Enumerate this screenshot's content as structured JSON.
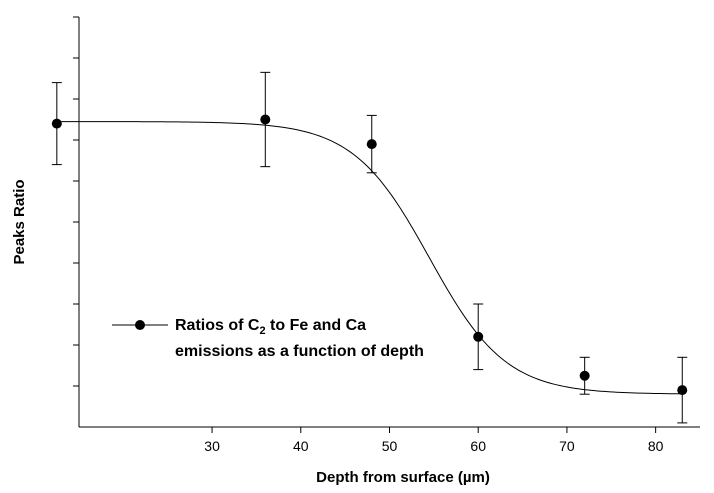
{
  "chart_data": {
    "type": "scatter",
    "title": "",
    "xlabel": "Depth from surface (µm)",
    "ylabel": "Peaks Ratio",
    "xlim": [
      15,
      85
    ],
    "ylim": [
      0,
      10
    ],
    "x_ticks": [
      30,
      40,
      50,
      60,
      70,
      80
    ],
    "y_ticks_count": 10,
    "y_tick_labels_shown": false,
    "grid": false,
    "legend_position": "bottom-left",
    "series": [
      {
        "name_line1_prefix": "Ratios of C",
        "name_subscript": "2",
        "name_line1_suffix": " to Fe and Ca",
        "name_line2": "emissions as a function of depth",
        "marker": "circle",
        "color": "#000000",
        "points": [
          {
            "x": 12.5,
            "y": 7.4,
            "err": 1.0
          },
          {
            "x": 36.0,
            "y": 7.5,
            "err": 1.15
          },
          {
            "x": 48.0,
            "y": 6.9,
            "err": 0.7
          },
          {
            "x": 60.0,
            "y": 2.2,
            "err": 0.8
          },
          {
            "x": 72.0,
            "y": 1.25,
            "err": 0.45
          },
          {
            "x": 83.0,
            "y": 0.9,
            "err": 0.8
          }
        ]
      }
    ],
    "fit_curve": {
      "type": "sigmoid",
      "top": 7.45,
      "bottom": 0.8,
      "x0": 54.5,
      "width": 4.3
    }
  }
}
